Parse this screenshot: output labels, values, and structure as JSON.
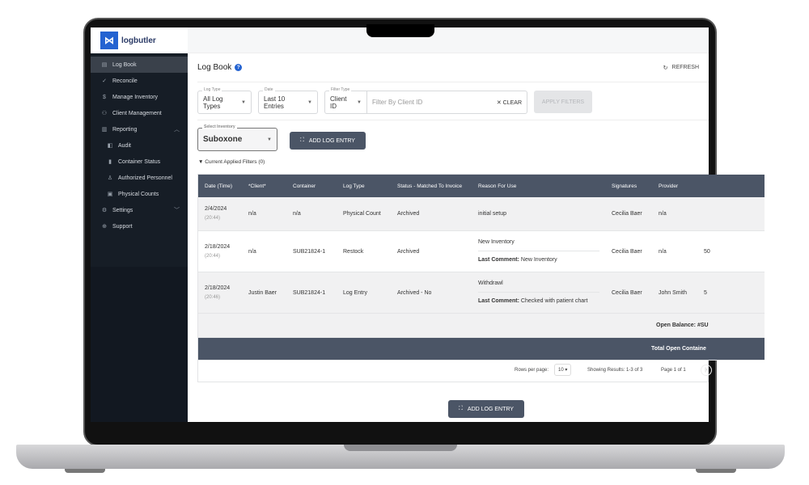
{
  "brand": {
    "name": "logbutler"
  },
  "sidebar": {
    "items": [
      {
        "label": "Log Book",
        "icon": "book-icon",
        "active": true
      },
      {
        "label": "Reconcile",
        "icon": "check-icon"
      },
      {
        "label": "Manage Inventory",
        "icon": "dollar-box-icon"
      },
      {
        "label": "Client Management",
        "icon": "people-icon"
      },
      {
        "label": "Reporting",
        "icon": "chart-icon",
        "expanded": true
      },
      {
        "label": "Audit",
        "icon": "columns-icon"
      },
      {
        "label": "Container Status",
        "icon": "bookmark-icon"
      },
      {
        "label": "Authorized Personnel",
        "icon": "person-edit-icon"
      },
      {
        "label": "Physical Counts",
        "icon": "clipboard-icon"
      },
      {
        "label": "Settings",
        "icon": "gear-icon"
      },
      {
        "label": "Support",
        "icon": "lifebuoy-icon"
      }
    ]
  },
  "page": {
    "title": "Log Book",
    "refresh": "REFRESH"
  },
  "filters": {
    "log_type": {
      "label": "Log Type",
      "value": "All Log Types"
    },
    "date": {
      "label": "Date",
      "value": "Last 10 Entries"
    },
    "filter_type": {
      "label": "Filter Type",
      "value": "Client ID"
    },
    "search_placeholder": "Filter By Client ID",
    "clear": "CLEAR",
    "apply": "APPLY FILTERS"
  },
  "inventory": {
    "label": "Select Inventory",
    "value": "Suboxone"
  },
  "add_log_entry": "ADD LOG ENTRY",
  "applied_filters": "Current Applied Filters (0)",
  "table": {
    "columns": [
      "Date (Time)",
      "*Client*",
      "Container",
      "Log Type",
      "Status - Matched To Invoice",
      "Reason For Use",
      "Signatures",
      "Provider"
    ],
    "rows": [
      {
        "date": "2/4/2024",
        "time": "(20:44)",
        "client": "n/a",
        "container": "n/a",
        "log_type": "Physical Count",
        "status": "Archived",
        "reason": "initial setup",
        "comment_label": "",
        "comment": "",
        "signature": "Cecilia Baer",
        "provider": "n/a",
        "extra": ""
      },
      {
        "date": "2/18/2024",
        "time": "(20:44)",
        "client": "n/a",
        "container": "SUB21824-1",
        "log_type": "Restock",
        "status": "Archived",
        "reason": "New Inventory",
        "comment_label": "Last Comment:",
        "comment": "New Inventory",
        "signature": "Cecilia Baer",
        "provider": "n/a",
        "extra": "50"
      },
      {
        "date": "2/18/2024",
        "time": "(20:46)",
        "client": "Justin Baer",
        "container": "SUB21824-1",
        "log_type": "Log Entry",
        "status": "Archived - No",
        "reason": "Withdrawl",
        "comment_label": "Last Comment:",
        "comment": "Checked with patient chart",
        "signature": "Cecilia Baer",
        "provider": "John Smith",
        "extra": "5"
      }
    ],
    "open_balance": "Open Balance: #SU",
    "total_open": "Total Open Containe",
    "rows_per_page_label": "Rows per page:",
    "rows_per_page": "10",
    "showing": "Showing Results: 1-3 of 3",
    "page": "Page 1 of 1"
  }
}
